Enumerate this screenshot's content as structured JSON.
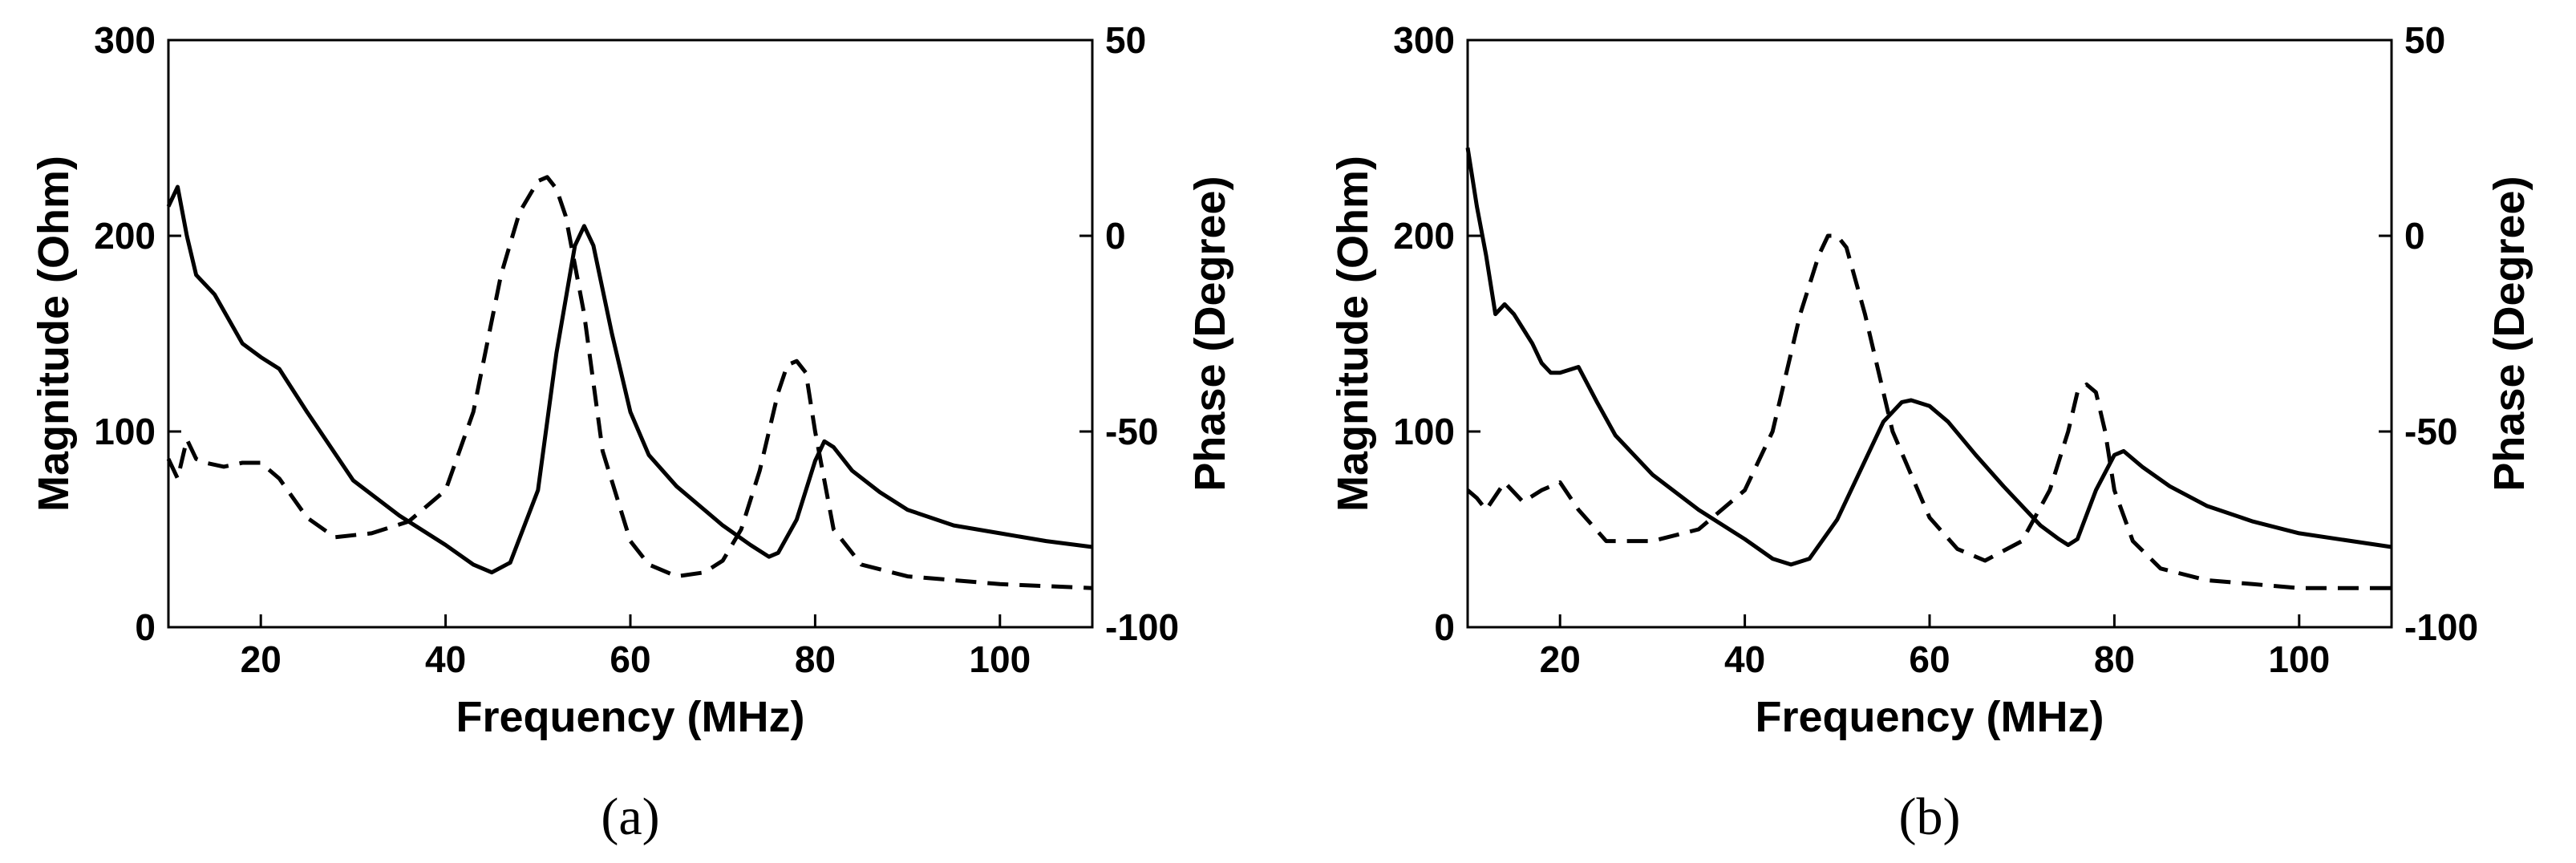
{
  "chart_data": [
    {
      "type": "line",
      "panel_label": "(a)",
      "xlabel": "Frequency (MHz)",
      "ylabel": "Magnitude (Ohm)",
      "y2label": "Phase (Degree)",
      "xlim": [
        10,
        110
      ],
      "ylim": [
        0,
        300
      ],
      "y2lim": [
        -100,
        50
      ],
      "xticks": [
        20,
        40,
        60,
        80,
        100
      ],
      "yticks": [
        0,
        100,
        200,
        300
      ],
      "y2ticks": [
        -100,
        -50,
        0,
        50
      ],
      "grid": false,
      "series": [
        {
          "axis": "left",
          "style": "solid",
          "x": [
            10,
            11,
            12,
            13,
            15,
            18,
            20,
            22,
            25,
            30,
            35,
            40,
            43,
            45,
            47,
            50,
            52,
            54,
            55,
            56,
            58,
            60,
            62,
            65,
            68,
            70,
            73,
            75,
            76,
            78,
            80,
            81,
            82,
            84,
            87,
            90,
            95,
            100,
            105,
            110
          ],
          "y": [
            215,
            225,
            200,
            180,
            170,
            145,
            138,
            132,
            110,
            75,
            57,
            42,
            32,
            28,
            33,
            70,
            140,
            195,
            205,
            195,
            150,
            110,
            88,
            72,
            60,
            52,
            42,
            36,
            38,
            55,
            85,
            95,
            92,
            80,
            69,
            60,
            52,
            48,
            44,
            41
          ]
        },
        {
          "axis": "right",
          "style": "dashed",
          "x": [
            10,
            11,
            12,
            13,
            14,
            16,
            18,
            20,
            22,
            25,
            28,
            32,
            36,
            40,
            43,
            46,
            48,
            50,
            51,
            52,
            53,
            55,
            57,
            60,
            62,
            65,
            68,
            70,
            72,
            74,
            76,
            77,
            78,
            79,
            80,
            82,
            85,
            90,
            95,
            100,
            110
          ],
          "y": [
            -57,
            -62,
            -52,
            -57,
            -58,
            -59,
            -58,
            -58,
            -62,
            -72,
            -77,
            -76,
            -73,
            -65,
            -45,
            -10,
            6,
            14,
            15,
            12,
            5,
            -20,
            -55,
            -78,
            -84,
            -87,
            -86,
            -83,
            -75,
            -60,
            -40,
            -33,
            -32,
            -35,
            -50,
            -75,
            -84,
            -87,
            -88,
            -89,
            -90
          ]
        }
      ]
    },
    {
      "type": "line",
      "panel_label": "(b)",
      "xlabel": "Frequency (MHz)",
      "ylabel": "Magnitude (Ohm)",
      "y2label": "Phase (Degree)",
      "xlim": [
        10,
        110
      ],
      "ylim": [
        0,
        300
      ],
      "y2lim": [
        -100,
        50
      ],
      "xticks": [
        20,
        40,
        60,
        80,
        100
      ],
      "yticks": [
        0,
        100,
        200,
        300
      ],
      "y2ticks": [
        -100,
        -50,
        0,
        50
      ],
      "grid": false,
      "series": [
        {
          "axis": "left",
          "style": "solid",
          "x": [
            10,
            11,
            12,
            13,
            14,
            15,
            17,
            18,
            19,
            20,
            22,
            24,
            26,
            30,
            35,
            40,
            43,
            45,
            47,
            50,
            53,
            55,
            57,
            58,
            60,
            62,
            65,
            68,
            72,
            74,
            75,
            76,
            78,
            80,
            81,
            83,
            86,
            90,
            95,
            100,
            110
          ],
          "y": [
            245,
            215,
            190,
            160,
            165,
            160,
            145,
            135,
            130,
            130,
            133,
            115,
            98,
            78,
            60,
            45,
            35,
            32,
            35,
            55,
            85,
            105,
            115,
            116,
            113,
            105,
            88,
            72,
            52,
            45,
            42,
            45,
            70,
            88,
            90,
            82,
            72,
            62,
            54,
            48,
            41
          ]
        },
        {
          "axis": "right",
          "style": "dashed",
          "x": [
            10,
            11,
            12,
            14,
            16,
            18,
            20,
            22,
            25,
            30,
            35,
            40,
            43,
            46,
            48,
            49,
            50,
            51,
            53,
            56,
            60,
            63,
            66,
            70,
            73,
            75,
            76,
            77,
            78,
            79,
            80,
            82,
            85,
            90,
            95,
            100,
            110
          ],
          "y": [
            -65,
            -67,
            -70,
            -63,
            -68,
            -65,
            -63,
            -70,
            -78,
            -78,
            -75,
            -65,
            -50,
            -20,
            -5,
            0,
            0,
            -3,
            -20,
            -50,
            -72,
            -80,
            -83,
            -78,
            -65,
            -50,
            -40,
            -38,
            -40,
            -50,
            -65,
            -78,
            -85,
            -88,
            -89,
            -90,
            -90
          ]
        }
      ]
    }
  ]
}
